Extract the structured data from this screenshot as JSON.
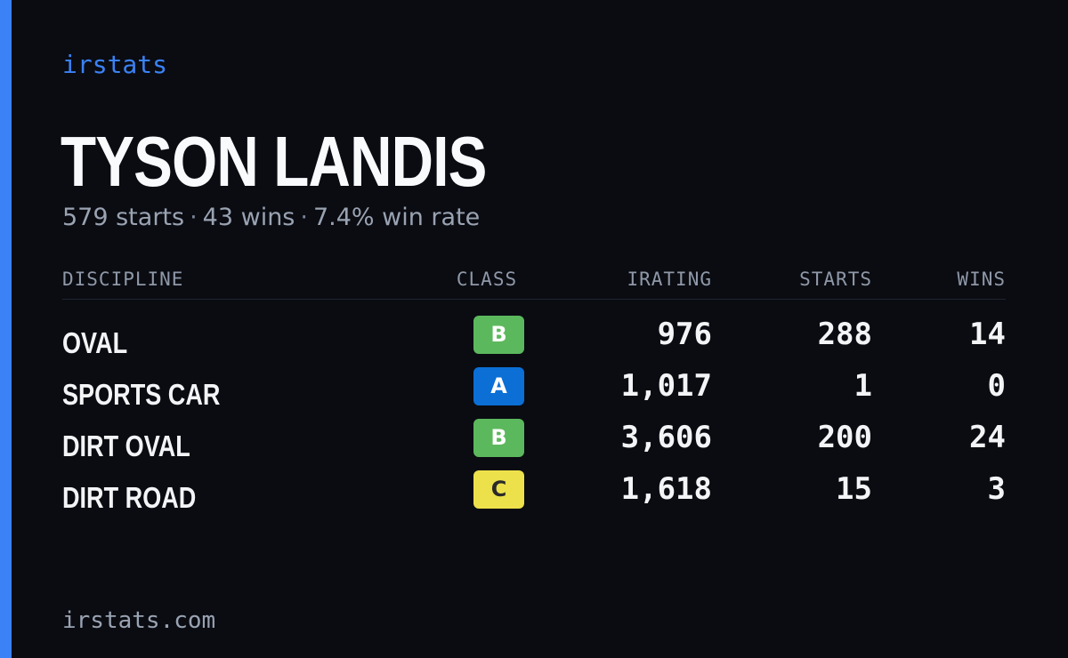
{
  "brand": "irstats",
  "player": {
    "name": "TYSON LANDIS",
    "starts": "579 starts",
    "wins": "43 wins",
    "win_rate": "7.4% win rate",
    "separator": "·"
  },
  "table": {
    "headers": {
      "discipline": "DISCIPLINE",
      "class": "CLASS",
      "irating": "IRATING",
      "starts": "STARTS",
      "wins": "WINS"
    },
    "rows": [
      {
        "discipline": "OVAL",
        "class": "B",
        "class_color": "#5cb85c",
        "class_text_color": "#ffffff",
        "irating": "976",
        "starts": "288",
        "wins": "14"
      },
      {
        "discipline": "SPORTS CAR",
        "class": "A",
        "class_color": "#0b6fd6",
        "class_text_color": "#ffffff",
        "irating": "1,017",
        "starts": "1",
        "wins": "0"
      },
      {
        "discipline": "DIRT OVAL",
        "class": "B",
        "class_color": "#5cb85c",
        "class_text_color": "#ffffff",
        "irating": "3,606",
        "starts": "200",
        "wins": "24"
      },
      {
        "discipline": "DIRT ROAD",
        "class": "C",
        "class_color": "#ece14a",
        "class_text_color": "#2a2a2a",
        "irating": "1,618",
        "starts": "15",
        "wins": "3"
      }
    ]
  },
  "footer": "irstats.com",
  "colors": {
    "accent": "#3b82f6",
    "background": "#0a0c12"
  }
}
